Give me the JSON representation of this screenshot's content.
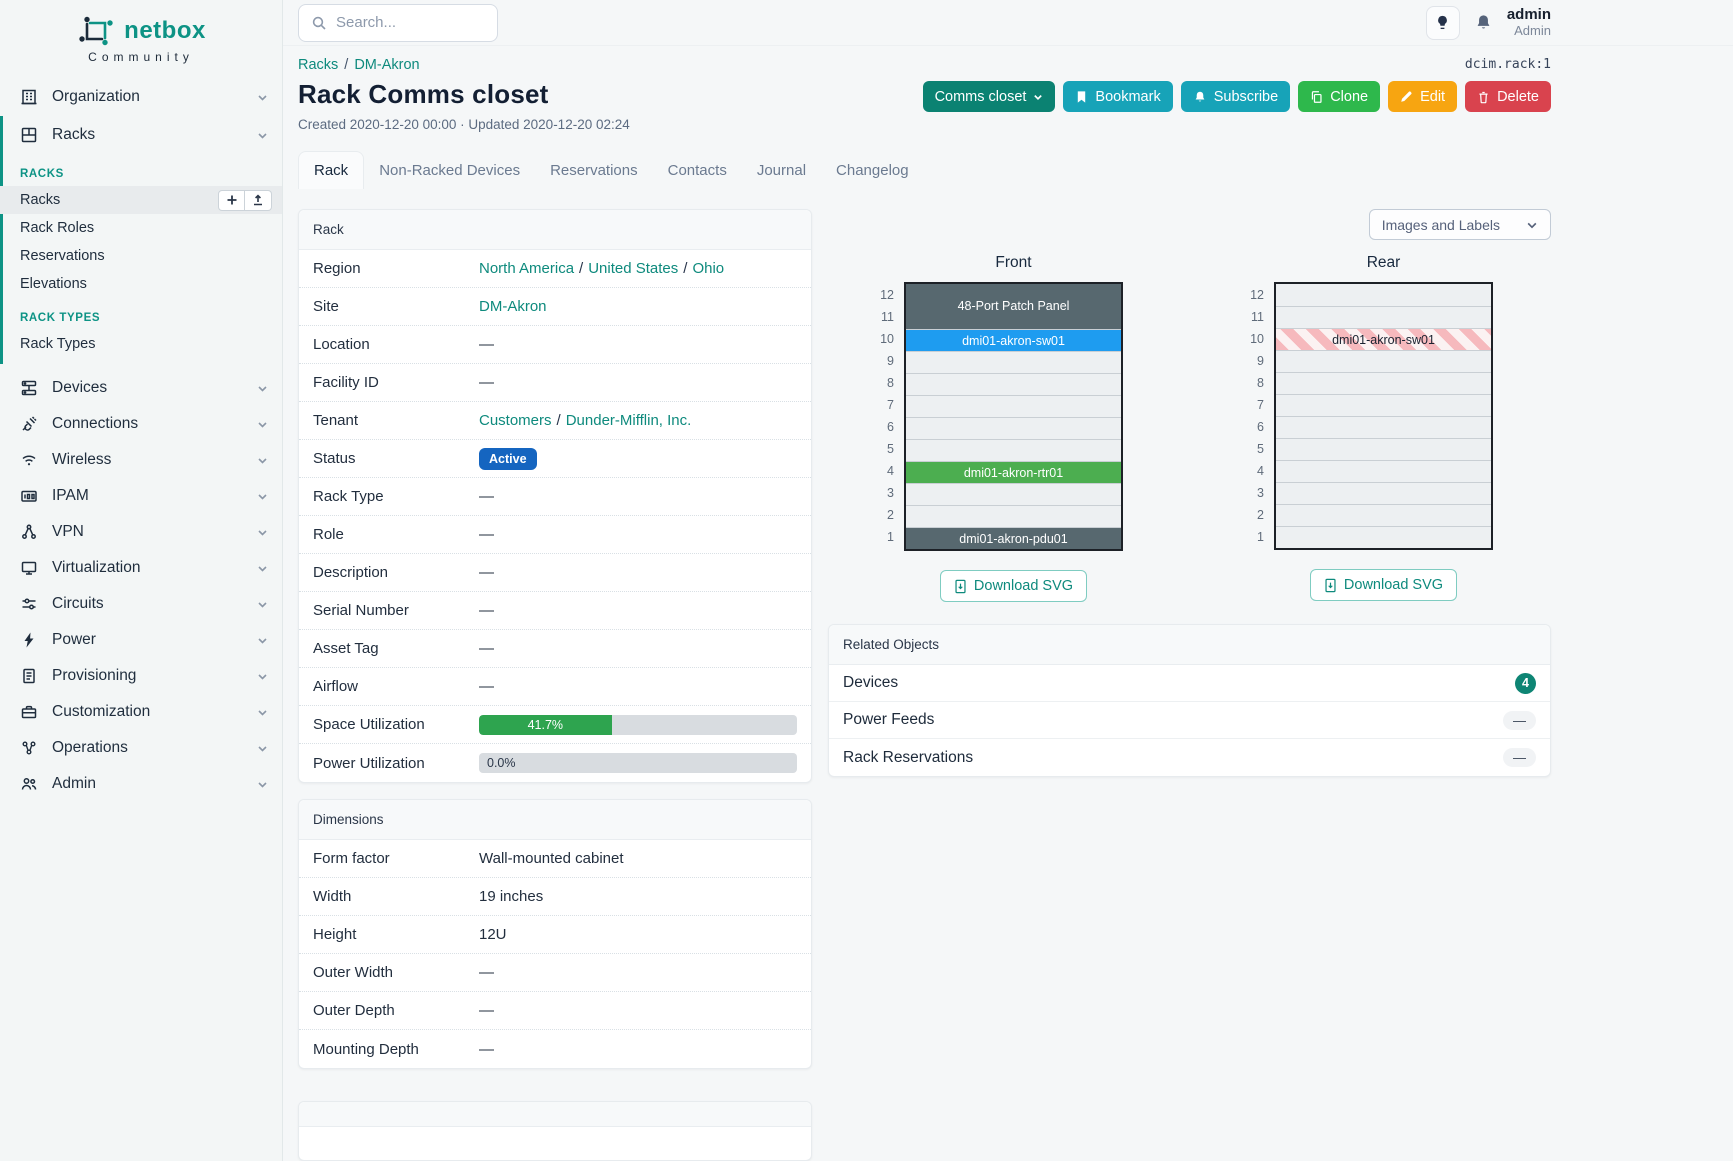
{
  "brand": {
    "name": "netbox",
    "subtitle": "Community"
  },
  "topbar": {
    "search_placeholder": "Search...",
    "username": "admin",
    "role": "Admin"
  },
  "sep": "/",
  "breadcrumb": {
    "items": [
      "Racks",
      "DM-Akron"
    ]
  },
  "object_id": "dcim.rack:1",
  "page": {
    "title": "Rack Comms closet",
    "meta": "Created 2020-12-20 00:00 · Updated 2020-12-20 02:24"
  },
  "actions": {
    "rename": "Comms closet",
    "bookmark": "Bookmark",
    "subscribe": "Subscribe",
    "clone": "Clone",
    "edit": "Edit",
    "delete": "Delete"
  },
  "tabs": [
    {
      "label": "Rack"
    },
    {
      "label": "Non-Racked Devices"
    },
    {
      "label": "Reservations"
    },
    {
      "label": "Contacts"
    },
    {
      "label": "Journal"
    },
    {
      "label": "Changelog"
    }
  ],
  "sidebar": {
    "groups_top": [
      {
        "label": "Organization"
      },
      {
        "label": "Racks"
      }
    ],
    "sections": [
      {
        "title": "RACKS",
        "items": [
          {
            "label": "Racks"
          },
          {
            "label": "Rack Roles"
          },
          {
            "label": "Reservations"
          },
          {
            "label": "Elevations"
          }
        ]
      },
      {
        "title": "RACK TYPES",
        "items": [
          {
            "label": "Rack Types"
          }
        ]
      }
    ],
    "groups_bottom": [
      {
        "label": "Devices"
      },
      {
        "label": "Connections"
      },
      {
        "label": "Wireless"
      },
      {
        "label": "IPAM"
      },
      {
        "label": "VPN"
      },
      {
        "label": "Virtualization"
      },
      {
        "label": "Circuits"
      },
      {
        "label": "Power"
      },
      {
        "label": "Provisioning"
      },
      {
        "label": "Customization"
      },
      {
        "label": "Operations"
      },
      {
        "label": "Admin"
      }
    ]
  },
  "rack_panel": {
    "title": "Rack",
    "rows": [
      {
        "label": "Region",
        "links": [
          "North America",
          "United States",
          "Ohio"
        ]
      },
      {
        "label": "Site",
        "links": [
          "DM-Akron"
        ]
      },
      {
        "label": "Location",
        "value": "—"
      },
      {
        "label": "Facility ID",
        "value": "—"
      },
      {
        "label": "Tenant",
        "links": [
          "Customers",
          "Dunder-Mifflin, Inc."
        ]
      },
      {
        "label": "Status",
        "badge": "Active",
        "badge_color": "#1565c0"
      },
      {
        "label": "Rack Type",
        "value": "—"
      },
      {
        "label": "Role",
        "value": "—"
      },
      {
        "label": "Description",
        "value": "—"
      },
      {
        "label": "Serial Number",
        "value": "—"
      },
      {
        "label": "Asset Tag",
        "value": "—"
      },
      {
        "label": "Airflow",
        "value": "—"
      },
      {
        "label": "Space Utilization",
        "progress": {
          "label": "41.7%",
          "color": "#2ea44f"
        }
      },
      {
        "label": "Power Utilization",
        "progress": {
          "label": "0.0%"
        }
      }
    ]
  },
  "dimensions_panel": {
    "title": "Dimensions",
    "rows": [
      {
        "label": "Form factor",
        "value": "Wall-mounted cabinet"
      },
      {
        "label": "Width",
        "value": "19 inches"
      },
      {
        "label": "Height",
        "value": "12U"
      },
      {
        "label": "Outer Width",
        "value": "—"
      },
      {
        "label": "Outer Depth",
        "value": "—"
      },
      {
        "label": "Mounting Depth",
        "value": "—"
      }
    ]
  },
  "elevation": {
    "toggle_label": "Images and Labels",
    "download_label": "Download SVG",
    "unit_numbers": [
      "12",
      "11",
      "10",
      "9",
      "8",
      "7",
      "6",
      "5",
      "4",
      "3",
      "2",
      "1"
    ],
    "colors": {
      "patch_panel": "#57686f",
      "switch": "#1e9cf0",
      "router": "#4cae50",
      "pdu": "#57686f"
    },
    "front": {
      "title": "Front",
      "patch_panel": "48-Port Patch Panel",
      "switch": "dmi01-akron-sw01",
      "router": "dmi01-akron-rtr01",
      "pdu": "dmi01-akron-pdu01"
    },
    "rear": {
      "title": "Rear",
      "switch": "dmi01-akron-sw01"
    }
  },
  "related_objects": {
    "title": "Related Objects",
    "rows": [
      {
        "label": "Devices",
        "count": "4"
      },
      {
        "label": "Power Feeds",
        "count": "—"
      },
      {
        "label": "Rack Reservations",
        "count": "—"
      }
    ]
  }
}
